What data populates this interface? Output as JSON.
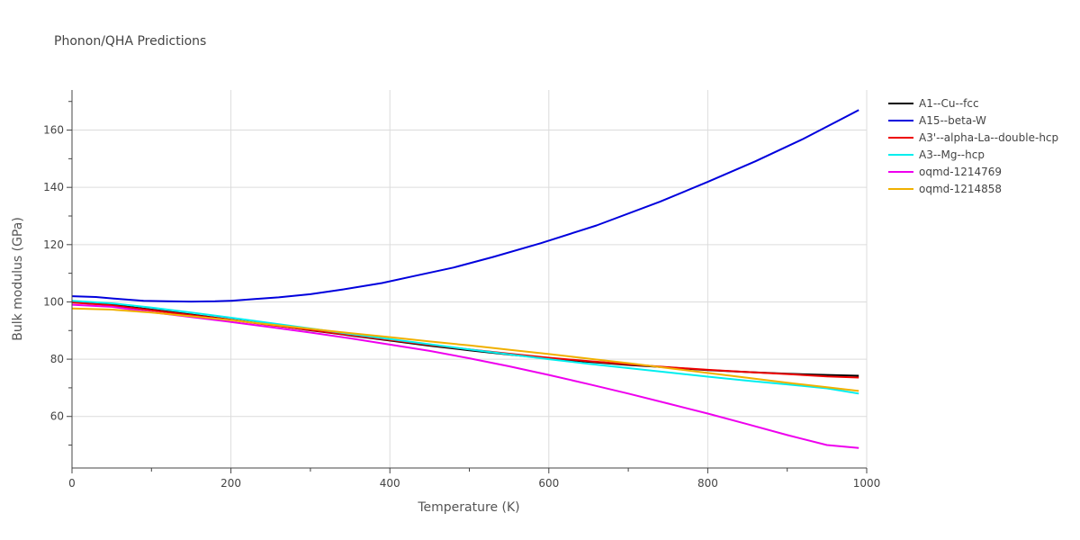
{
  "chart_data": {
    "type": "line",
    "title": "Phonon/QHA Predictions",
    "xlabel": "Temperature (K)",
    "ylabel": "Bulk modulus (GPa)",
    "xlim": [
      0,
      1000
    ],
    "ylim": [
      42,
      174
    ],
    "xticks": [
      0,
      200,
      400,
      600,
      800,
      1000
    ],
    "yticks": [
      60,
      80,
      100,
      120,
      140,
      160
    ],
    "grid": true,
    "legend_position": "top-right outside",
    "series": [
      {
        "name": "A1--Cu--fcc",
        "color": "#000000",
        "x": [
          0,
          50,
          100,
          150,
          200,
          250,
          300,
          350,
          400,
          450,
          500,
          550,
          600,
          650,
          700,
          750,
          800,
          850,
          900,
          950,
          990
        ],
        "y": [
          100.0,
          99.0,
          97.3,
          95.6,
          93.8,
          92.0,
          90.1,
          88.3,
          86.5,
          84.7,
          83.1,
          81.6,
          80.3,
          79.1,
          78.0,
          77.1,
          76.2,
          75.5,
          74.9,
          74.5,
          74.2
        ]
      },
      {
        "name": "A15--beta-W",
        "color": "#0000dd",
        "x": [
          0,
          30,
          60,
          90,
          120,
          150,
          180,
          200,
          230,
          260,
          300,
          340,
          390,
          430,
          480,
          530,
          590,
          660,
          740,
          800,
          860,
          920,
          990
        ],
        "y": [
          102.0,
          101.7,
          101.0,
          100.4,
          100.2,
          100.1,
          100.2,
          100.4,
          101.0,
          101.6,
          102.7,
          104.3,
          106.6,
          109.0,
          112.0,
          115.7,
          120.5,
          126.7,
          135.0,
          141.9,
          149.1,
          156.9,
          167.0
        ]
      },
      {
        "name": "A3'--alpha-La--double-hcp",
        "color": "#ee0000",
        "x": [
          0,
          50,
          100,
          150,
          200,
          250,
          300,
          350,
          400,
          450,
          500,
          550,
          600,
          650,
          700,
          750,
          800,
          850,
          900,
          950,
          990
        ],
        "y": [
          99.8,
          98.8,
          97.1,
          95.4,
          93.7,
          91.9,
          90.2,
          88.4,
          86.7,
          85.0,
          83.4,
          81.9,
          80.5,
          79.3,
          78.2,
          77.2,
          76.3,
          75.5,
          74.8,
          74.0,
          73.6
        ]
      },
      {
        "name": "A3--Mg--hcp",
        "color": "#00eeee",
        "x": [
          0,
          50,
          100,
          150,
          200,
          250,
          300,
          350,
          400,
          450,
          500,
          550,
          600,
          650,
          700,
          750,
          800,
          850,
          900,
          950,
          990
        ],
        "y": [
          100.4,
          99.5,
          98.0,
          96.3,
          94.5,
          92.6,
          90.7,
          88.8,
          87.0,
          85.2,
          83.4,
          81.7,
          80.0,
          78.4,
          76.9,
          75.4,
          73.9,
          72.5,
          71.2,
          69.8,
          68.0
        ]
      },
      {
        "name": "oqmd-1214769",
        "color": "#ee00ee",
        "x": [
          0,
          50,
          100,
          150,
          200,
          250,
          300,
          350,
          400,
          450,
          500,
          550,
          600,
          650,
          700,
          750,
          800,
          850,
          900,
          950,
          990
        ],
        "y": [
          99.0,
          98.3,
          96.4,
          94.7,
          93.0,
          91.2,
          89.3,
          87.3,
          85.1,
          82.9,
          80.3,
          77.5,
          74.5,
          71.3,
          68.0,
          64.5,
          61.0,
          57.3,
          53.5,
          50.0,
          49.0
        ]
      },
      {
        "name": "oqmd-1214858",
        "color": "#f0b000",
        "x": [
          0,
          50,
          100,
          150,
          200,
          250,
          300,
          350,
          400,
          450,
          500,
          550,
          600,
          650,
          700,
          750,
          800,
          850,
          900,
          950,
          990
        ],
        "y": [
          97.7,
          97.3,
          96.3,
          95.0,
          93.6,
          92.1,
          90.6,
          89.1,
          87.7,
          86.2,
          84.8,
          83.3,
          81.8,
          80.2,
          78.6,
          76.9,
          75.2,
          73.5,
          71.8,
          70.2,
          68.9
        ]
      }
    ]
  }
}
